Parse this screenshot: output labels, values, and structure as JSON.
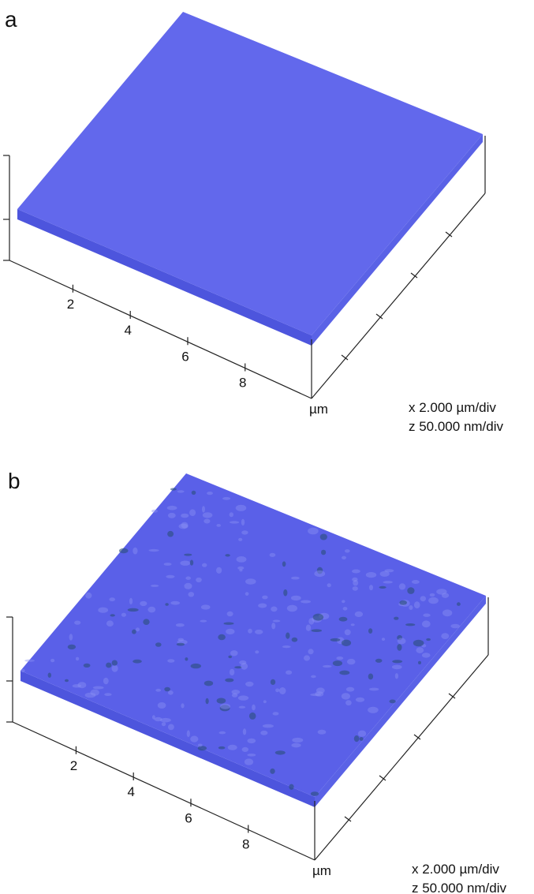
{
  "panels": [
    {
      "label": "a",
      "x_ticks": [
        2,
        4,
        6,
        8
      ],
      "unit": "µm",
      "scale_x": "x 2.000 µm/div",
      "scale_z": "z 50.000 nm/div"
    },
    {
      "label": "b",
      "x_ticks": [
        2,
        4,
        6,
        8
      ],
      "unit": "µm",
      "scale_x": "x 2.000 µm/div",
      "scale_z": "z 50.000 nm/div"
    }
  ]
}
